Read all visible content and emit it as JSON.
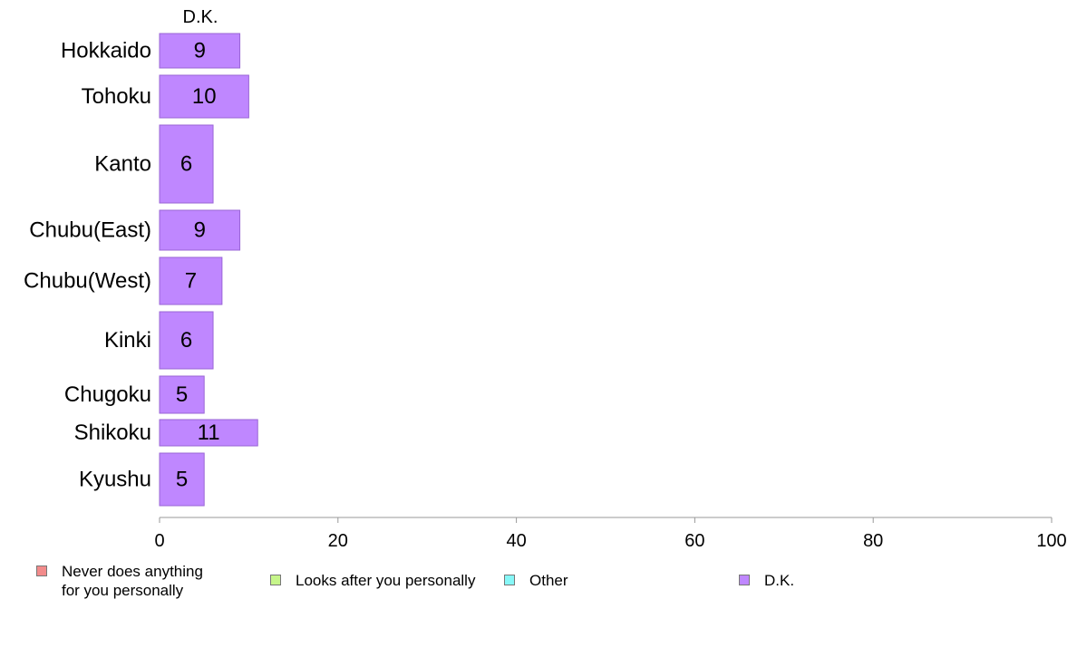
{
  "chart_data": {
    "type": "bar",
    "orientation": "horizontal",
    "title": "D.K.",
    "categories": [
      "Hokkaido",
      "Tohoku",
      "Kanto",
      "Chubu(East)",
      "Chubu(West)",
      "Kinki",
      "Chugoku",
      "Shikoku",
      "Kyushu"
    ],
    "values": [
      9,
      10,
      6,
      9,
      7,
      6,
      5,
      11,
      5
    ],
    "data_labels": [
      "9",
      "10",
      "6",
      "9",
      "7",
      "6",
      "5",
      "11",
      "5"
    ],
    "xlim": [
      0,
      100
    ],
    "xticks": [
      0,
      20,
      40,
      60,
      80,
      100
    ],
    "xlabel": "",
    "ylabel": "",
    "grid": false,
    "bar_color": "#bf87ff",
    "bar_edge_color": "#9a66d6",
    "legend_position": "bottom",
    "legend": [
      {
        "label": "Never does anything\nfor you personally",
        "color": "#f28b8b"
      },
      {
        "label": "Looks after you personally",
        "color": "#c6f58a"
      },
      {
        "label": "Other",
        "color": "#86f7f7"
      },
      {
        "label": "D.K.",
        "color": "#bf87ff"
      }
    ]
  }
}
